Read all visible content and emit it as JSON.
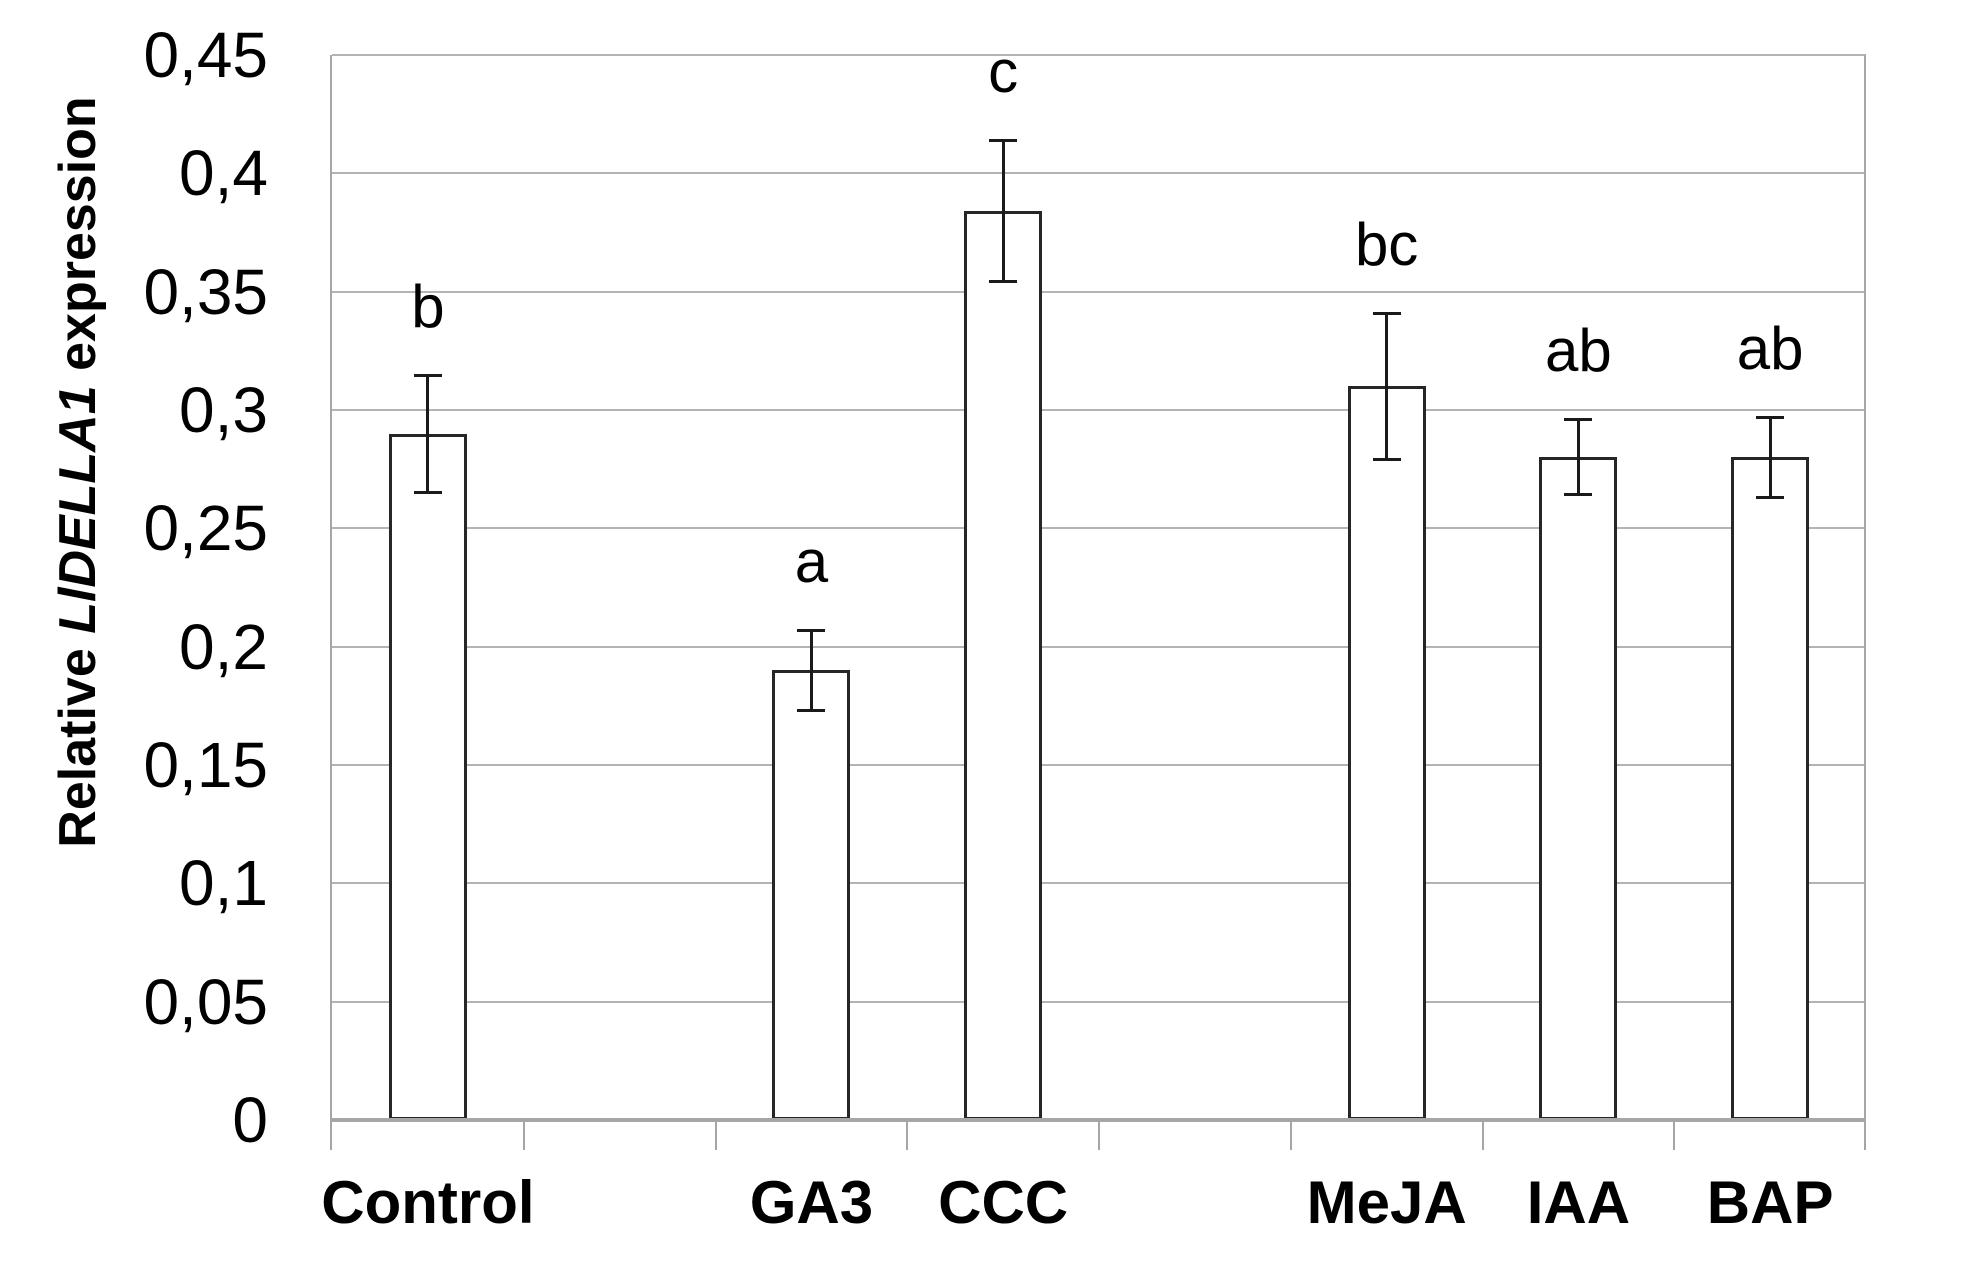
{
  "chart_data": {
    "type": "bar",
    "title": "",
    "ylabel": "Relative LlDELLA1 expression",
    "ylabel_parts": {
      "prefix": "Relative ",
      "gene": "LlDELLA1",
      "suffix": " expression"
    },
    "xlabel": "",
    "categories": [
      "Control",
      "GA3",
      "CCC",
      "MeJA",
      "IAA",
      "BAP"
    ],
    "values": [
      0.29,
      0.19,
      0.384,
      0.31,
      0.28,
      0.28
    ],
    "errors": [
      0.025,
      0.017,
      0.03,
      0.031,
      0.016,
      0.017
    ],
    "sig_letters": [
      "b",
      "a",
      "c",
      "bc",
      "ab",
      "ab"
    ],
    "slot_index": [
      1,
      3,
      4,
      6,
      7,
      8
    ],
    "n_slots": 8,
    "ylim": [
      0,
      0.45
    ],
    "ytick_step": 0.05,
    "ytick_labels": [
      "0",
      "0,05",
      "0,1",
      "0,15",
      "0,2",
      "0,25",
      "0,3",
      "0,35",
      "0,4",
      "0,45"
    ],
    "decimal_separator": ",",
    "grid": true,
    "legend": "none",
    "bar_fill": "#ffffff",
    "bar_border_color": "#262626",
    "error_bar_color": "#1a1a1a",
    "gridline_color": "#b3b3b3",
    "axis_color": "#a6a6a6",
    "text_color": "#000000"
  }
}
